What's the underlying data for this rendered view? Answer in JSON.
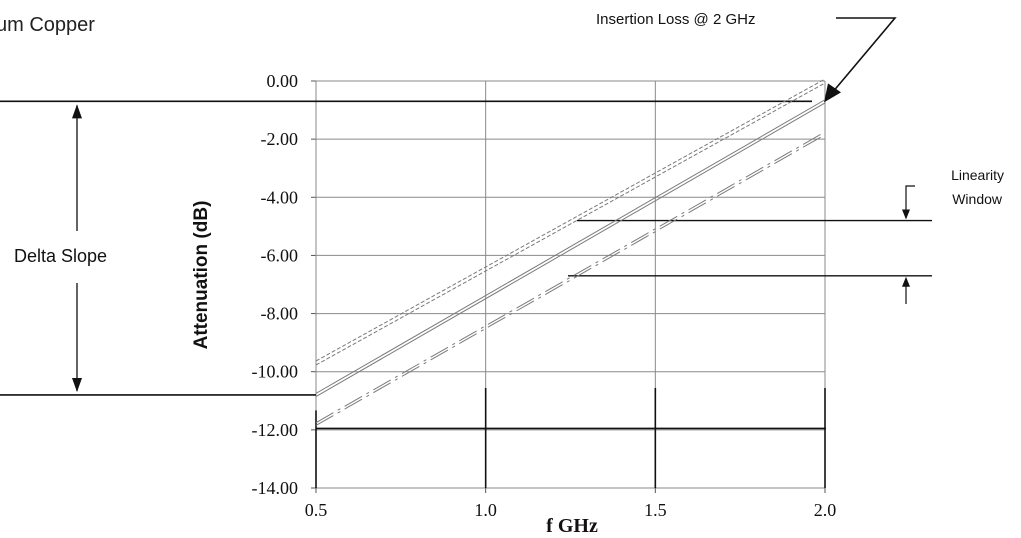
{
  "header_text": "um Copper",
  "chart_data": {
    "type": "line",
    "xlabel": "f GHz",
    "ylabel": "Attenuation (dB)",
    "xlim": [
      0.5,
      2.0
    ],
    "ylim": [
      -14.0,
      0.0
    ],
    "x_ticks": [
      "0.5",
      "1.0",
      "1.5",
      "2.0"
    ],
    "y_ticks": [
      "0.00",
      "-2.00",
      "-4.00",
      "-6.00",
      "-8.00",
      "-10.00",
      "-12.00",
      "-14.00"
    ],
    "grid": true,
    "series": [
      {
        "style": "dotted-double",
        "x": [
          0.5,
          2.0
        ],
        "y": [
          -9.7,
          0.0
        ]
      },
      {
        "style": "solid-double",
        "x": [
          0.5,
          2.0
        ],
        "y": [
          -10.8,
          -0.7
        ]
      },
      {
        "style": "dash-dot",
        "x": [
          0.5,
          2.0
        ],
        "y": [
          -11.8,
          -1.8
        ]
      }
    ],
    "annotations": {
      "insertion_loss": "Insertion Loss @ 2 GHz",
      "delta_slope": "Delta Slope",
      "linearity_window_line1": "Linearity",
      "linearity_window_line2": "Window"
    },
    "reference_levels": {
      "insertion_loss_level": -0.7,
      "delta_slope_bottom": -10.8,
      "linearity_upper": -4.8,
      "linearity_lower": -6.7,
      "bottom_level": -11.95
    }
  }
}
